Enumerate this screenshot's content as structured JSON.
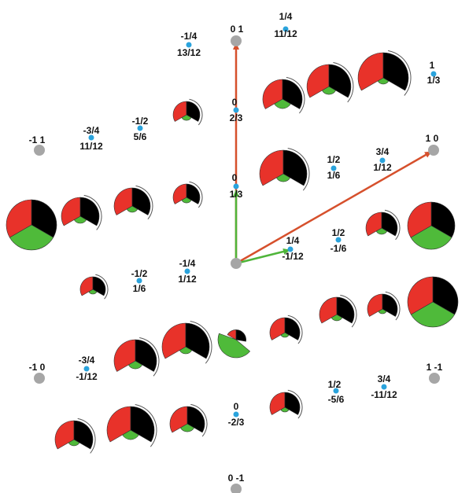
{
  "colors": {
    "red": "#e8322a",
    "green": "#4fba3a",
    "black": "#000000",
    "gray_node": "#a6a6a6",
    "blue_node": "#2aa3dc",
    "arrow_red": "#d6502c",
    "arrow_green": "#4fb53a"
  },
  "lattice_labels": [
    {
      "id": "p0_1",
      "text": "0 1"
    },
    {
      "id": "p1_0",
      "text": "1 0"
    },
    {
      "id": "pm1_1",
      "text": "-1 1"
    },
    {
      "id": "pm1_0",
      "text": "-1 0"
    },
    {
      "id": "p1_m1",
      "text": "1 -1"
    },
    {
      "id": "p0_m1",
      "text": "0 -1"
    }
  ],
  "kpoint_labels": [
    {
      "id": "k1",
      "top": "1/4",
      "bottom": "11/12"
    },
    {
      "id": "k2",
      "top": "-1/4",
      "bottom": "13/12"
    },
    {
      "id": "k3",
      "top": "1",
      "bottom": "1/3"
    },
    {
      "id": "k4",
      "top": "0",
      "bottom": "2/3"
    },
    {
      "id": "k5",
      "top": "-3/4",
      "bottom": "11/12"
    },
    {
      "id": "k6",
      "top": "-1/2",
      "bottom": "5/6"
    },
    {
      "id": "k7",
      "top": "1/2",
      "bottom": "1/6"
    },
    {
      "id": "k8",
      "top": "3/4",
      "bottom": "1/12"
    },
    {
      "id": "k9",
      "top": "0",
      "bottom": "1/3"
    },
    {
      "id": "k10",
      "top": "1/4",
      "bottom": "-1/12"
    },
    {
      "id": "k11",
      "top": "1/2",
      "bottom": "-1/6"
    },
    {
      "id": "k12",
      "top": "-1/4",
      "bottom": "1/12"
    },
    {
      "id": "k13",
      "top": "-1/2",
      "bottom": "1/6"
    },
    {
      "id": "k14",
      "top": "-3/4",
      "bottom": "-1/12"
    },
    {
      "id": "k15",
      "top": "1/2",
      "bottom": "-5/6"
    },
    {
      "id": "k16",
      "top": "3/4",
      "bottom": "-11/12"
    },
    {
      "id": "k17",
      "top": "0",
      "bottom": "-2/3"
    }
  ],
  "pies": [
    {
      "id": "pie1",
      "red": 0.33,
      "green": 0.33,
      "black": 0.34
    },
    {
      "id": "pie2",
      "red": 0.45,
      "green": 0.05,
      "black": 0.5
    },
    {
      "id": "pie3",
      "red": 0.45,
      "green": 0.1,
      "black": 0.45
    },
    {
      "id": "pie4",
      "red": 0.45,
      "green": 0.1,
      "black": 0.45
    }
  ]
}
